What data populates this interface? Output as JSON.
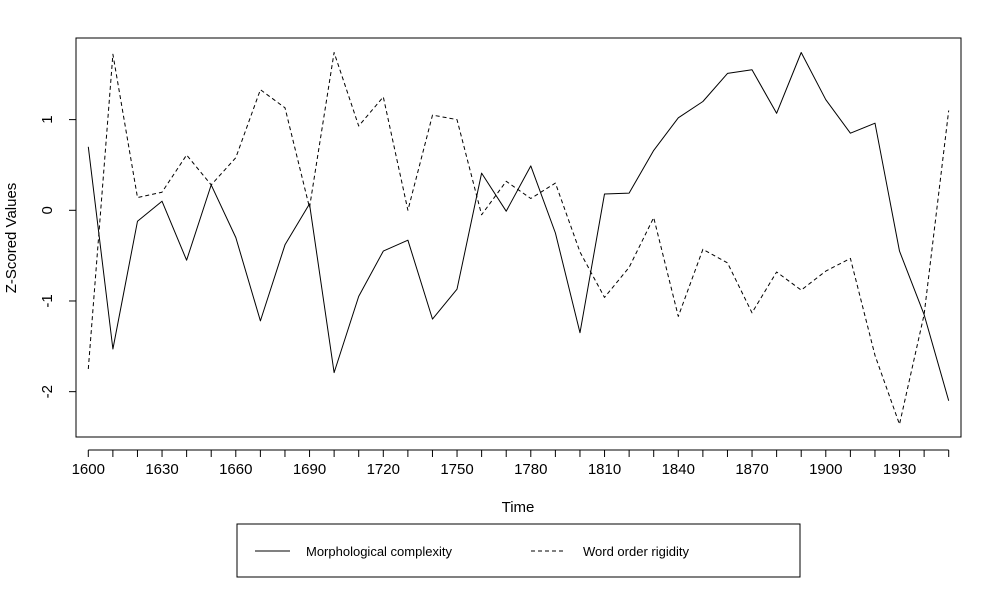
{
  "chart_data": {
    "type": "line",
    "xlabel": "Time",
    "ylabel": "Z-Scored Values",
    "xlim": [
      1595,
      1955
    ],
    "ylim": [
      -2.5,
      1.9
    ],
    "x_ticks": [
      1600,
      1630,
      1660,
      1690,
      1720,
      1750,
      1780,
      1810,
      1840,
      1870,
      1900,
      1930
    ],
    "x_tick_labels": [
      "1600",
      "1630",
      "1660",
      "1690",
      "1720",
      "1750",
      "1780",
      "1810",
      "1840",
      "1870",
      "1900",
      "1930"
    ],
    "y_ticks": [
      -2,
      -1,
      0,
      1
    ],
    "y_tick_labels": [
      "-2",
      "-1",
      "0",
      "1"
    ],
    "grid": false,
    "legend_position": "bottom",
    "series": [
      {
        "name": "Morphological complexity",
        "style": "solid",
        "x": [
          1600,
          1610,
          1620,
          1630,
          1640,
          1650,
          1660,
          1670,
          1680,
          1690,
          1700,
          1710,
          1720,
          1730,
          1740,
          1750,
          1760,
          1770,
          1780,
          1790,
          1800,
          1810,
          1820,
          1830,
          1840,
          1850,
          1860,
          1870,
          1880,
          1890,
          1900,
          1910,
          1920,
          1930,
          1940,
          1950
        ],
        "values": [
          0.7,
          -1.53,
          -0.12,
          0.1,
          -0.55,
          0.28,
          -0.3,
          -1.22,
          -0.38,
          0.07,
          -1.79,
          -0.95,
          -0.45,
          -0.33,
          -1.2,
          -0.87,
          0.41,
          -0.01,
          0.49,
          -0.25,
          -1.35,
          0.18,
          0.19,
          0.66,
          1.02,
          1.2,
          1.51,
          1.55,
          1.07,
          1.74,
          1.22,
          0.85,
          0.96,
          -0.45,
          -1.15,
          -2.1
        ]
      },
      {
        "name": "Word order rigidity",
        "style": "dashed",
        "x": [
          1600,
          1610,
          1620,
          1630,
          1640,
          1650,
          1660,
          1670,
          1680,
          1690,
          1700,
          1710,
          1720,
          1730,
          1740,
          1750,
          1760,
          1770,
          1780,
          1790,
          1800,
          1810,
          1820,
          1830,
          1840,
          1850,
          1860,
          1870,
          1880,
          1890,
          1900,
          1910,
          1920,
          1930,
          1940,
          1950
        ],
        "values": [
          -1.75,
          1.72,
          0.14,
          0.2,
          0.61,
          0.28,
          0.58,
          1.33,
          1.13,
          0.03,
          1.74,
          0.93,
          1.25,
          0.0,
          1.05,
          1.0,
          -0.05,
          0.32,
          0.13,
          0.3,
          -0.46,
          -0.96,
          -0.63,
          -0.08,
          -1.17,
          -0.43,
          -0.58,
          -1.13,
          -0.68,
          -0.88,
          -0.67,
          -0.53,
          -1.6,
          -2.36,
          -1.15,
          1.1
        ]
      }
    ]
  }
}
